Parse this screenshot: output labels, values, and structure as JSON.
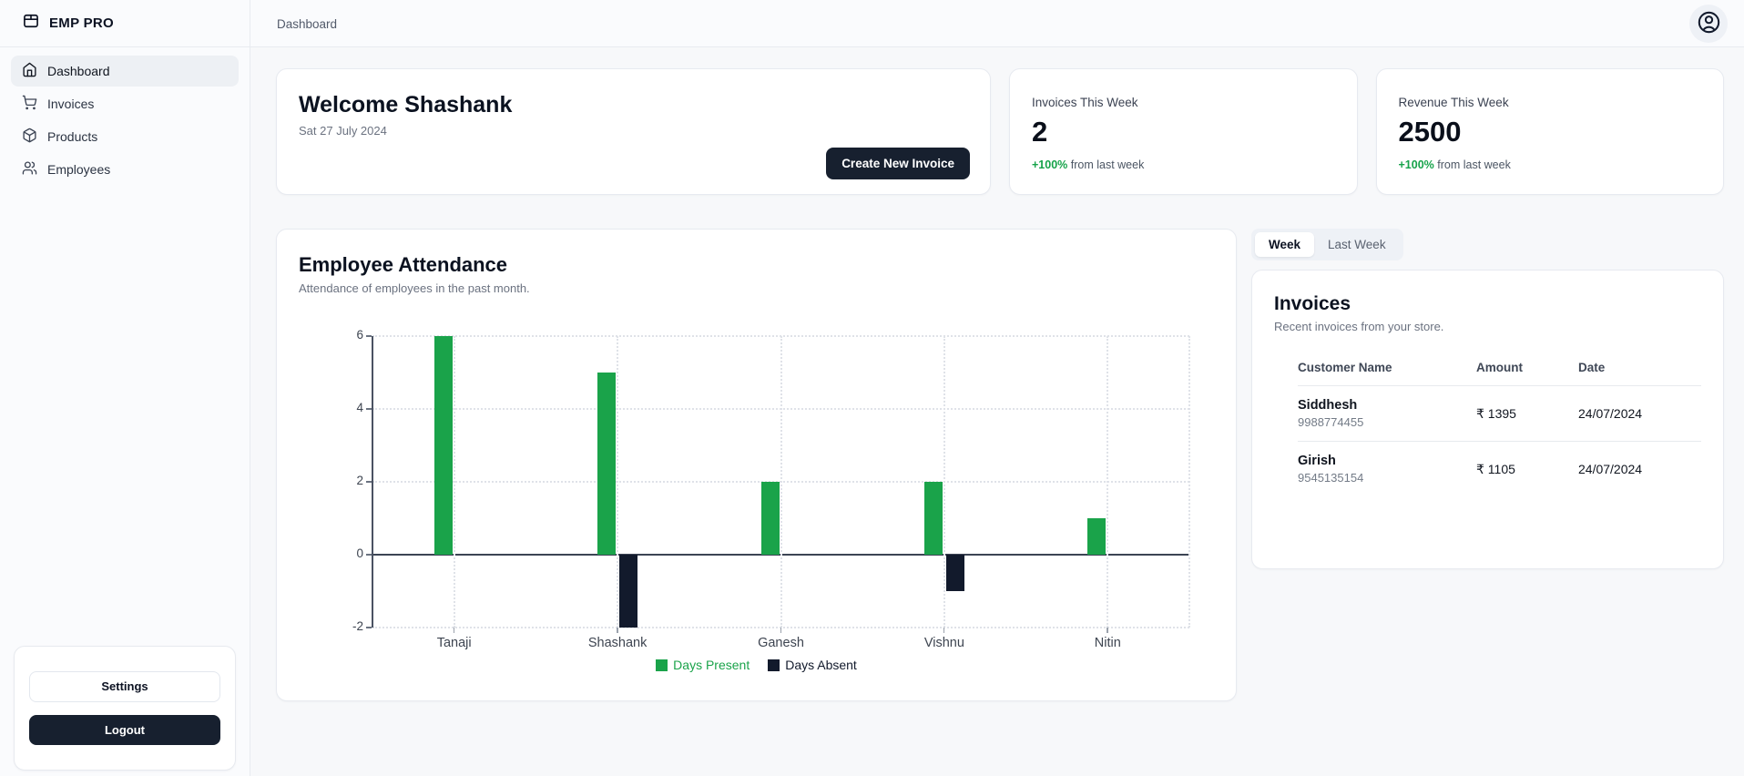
{
  "app": {
    "name": "EMP PRO",
    "logo_icon": "package-icon"
  },
  "topbar": {
    "breadcrumb": "Dashboard",
    "avatar_icon": "user-circle-icon"
  },
  "sidebar": {
    "items": [
      {
        "label": "Dashboard",
        "icon": "home-icon",
        "active": true
      },
      {
        "label": "Invoices",
        "icon": "shopping-cart-icon",
        "active": false
      },
      {
        "label": "Products",
        "icon": "package-icon",
        "active": false
      },
      {
        "label": "Employees",
        "icon": "users-icon",
        "active": false
      }
    ],
    "settings_label": "Settings",
    "logout_label": "Logout"
  },
  "welcome": {
    "title": "Welcome Shashank",
    "date": "Sat 27 July 2024",
    "cta": "Create New Invoice"
  },
  "stats": [
    {
      "label": "Invoices This Week",
      "value": "2",
      "delta": "+100%",
      "delta_suffix": " from last week"
    },
    {
      "label": "Revenue This Week",
      "value": "2500",
      "delta": "+100%",
      "delta_suffix": " from last week"
    }
  ],
  "attendance": {
    "title": "Employee Attendance",
    "subtitle": "Attendance of employees in the past month."
  },
  "chart_data": {
    "type": "bar",
    "title": "Employee Attendance",
    "categories": [
      "Tanaji",
      "Shashank",
      "Ganesh",
      "Vishnu",
      "Nitin"
    ],
    "series": [
      {
        "name": "Days Present",
        "color": "#1aa34a",
        "values": [
          6,
          5,
          2,
          2,
          1
        ]
      },
      {
        "name": "Days Absent",
        "color": "#121a2c",
        "values": [
          0,
          -2,
          0,
          -1,
          0
        ]
      }
    ],
    "xlabel": "",
    "ylabel": "",
    "ylim": [
      -2,
      6
    ],
    "yticks": [
      6,
      4,
      2,
      0,
      -2
    ],
    "grid": true,
    "grid_style": "dotted",
    "legend_position": "bottom"
  },
  "tabs": [
    {
      "label": "Week",
      "active": true
    },
    {
      "label": "Last Week",
      "active": false
    }
  ],
  "invoices_panel": {
    "title": "Invoices",
    "subtitle": "Recent invoices from your store.",
    "columns": [
      "Customer Name",
      "Amount",
      "Date"
    ],
    "rows": [
      {
        "name": "Siddhesh",
        "phone": "9988774455",
        "amount": "₹ 1395",
        "date": "24/07/2024"
      },
      {
        "name": "Girish",
        "phone": "9545135154",
        "amount": "₹ 1105",
        "date": "24/07/2024"
      }
    ]
  },
  "colors": {
    "accent_green": "#16a34a",
    "dark_navy": "#17202f",
    "bar_absent": "#121a2c",
    "page_bg": "#f7f8fa",
    "card_border": "#e7eaf0"
  }
}
